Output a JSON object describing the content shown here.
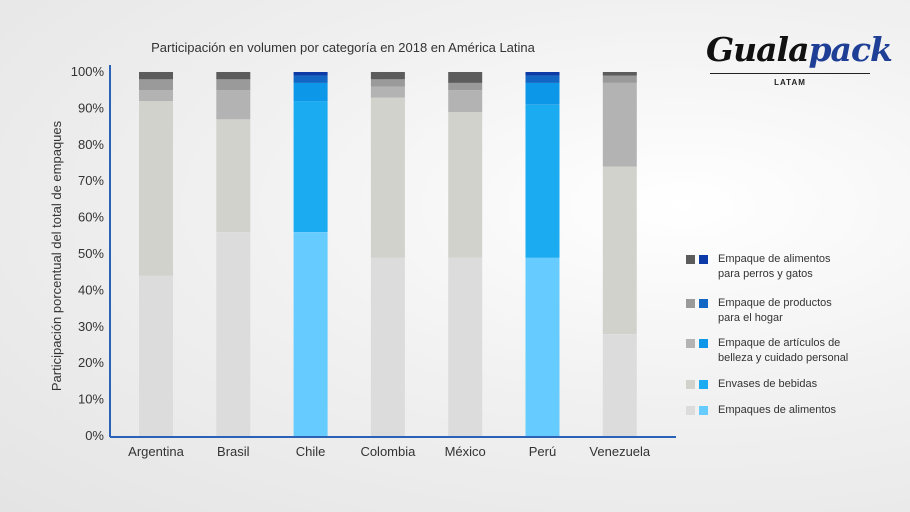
{
  "chart_data": {
    "type": "bar",
    "stacked": true,
    "title": "Participación en volumen por categoría en 2018 en América Latina",
    "xlabel": "",
    "ylabel": "Participación porcentual del total de empaques",
    "ylim": [
      0,
      100
    ],
    "yticks": [
      "0%",
      "10%",
      "20%",
      "30%",
      "40%",
      "50%",
      "60%",
      "70%",
      "80%",
      "90%",
      "100%"
    ],
    "categories": [
      "Argentina",
      "Brasil",
      "Chile",
      "Colombia",
      "México",
      "Perú",
      "Venezuela"
    ],
    "highlighted_categories": [
      "Chile",
      "Perú"
    ],
    "series": [
      {
        "name": "Empaques de alimentos",
        "values": [
          44,
          56,
          56,
          49,
          49,
          49,
          28
        ]
      },
      {
        "name": "Envases de bebidas",
        "values": [
          48,
          31,
          36,
          44,
          40,
          42,
          46
        ]
      },
      {
        "name": "Empaque de artículos de belleza y cuidado personal",
        "values": [
          3,
          8,
          5,
          3,
          6,
          6,
          23
        ]
      },
      {
        "name": "Empaque de productos para el hogar",
        "values": [
          3,
          3,
          2,
          2,
          2,
          2,
          2
        ]
      },
      {
        "name": "Empaque de alimentos para perros y gatos",
        "values": [
          2,
          2,
          1,
          2,
          3,
          1,
          1
        ]
      }
    ],
    "colors_gray": [
      "#dcdcdc",
      "#d2d2cd",
      "#b3b3b3",
      "#9a9a9a",
      "#5c5c5c"
    ],
    "colors_blue": [
      "#66ccff",
      "#1aabf0",
      "#0d97e8",
      "#1266c4",
      "#0c3aa6"
    ],
    "axis_color": "#2a62b8",
    "legend": {
      "position": "right",
      "items": [
        {
          "label": "Empaque de alimentos\npara perros y gatos",
          "gray": "#5c5c5c",
          "blue": "#0c3aa6"
        },
        {
          "label": "Empaque de productos\npara el hogar",
          "gray": "#9a9a9a",
          "blue": "#1266c4"
        },
        {
          "label": "Empaque de artículos de\nbelleza y cuidado personal",
          "gray": "#b3b3b3",
          "blue": "#0d97e8"
        },
        {
          "label": "Envases de bebidas",
          "gray": "#d2d2cd",
          "blue": "#1aabf0"
        },
        {
          "label": "Empaques de alimentos",
          "gray": "#dcdcdc",
          "blue": "#66ccff"
        }
      ]
    }
  },
  "logo": {
    "text_main": "Guala",
    "text_accent": "pack",
    "subtitle": "LATAM",
    "accent_color": "#1f3f96"
  }
}
